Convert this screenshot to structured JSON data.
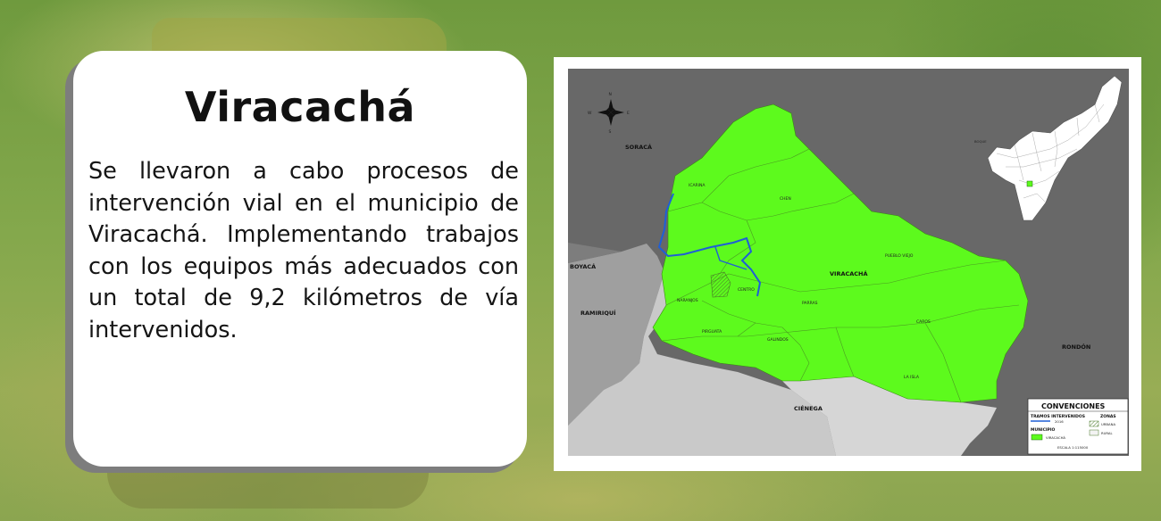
{
  "card": {
    "title": "Viracachá",
    "text": "Se llevaron a cabo procesos de intervención vial en el municipio de Viracachá. Implementando trabajos con los equipos más adecuados con un total de 9,2 kilómetros de vía intervenidos."
  },
  "map": {
    "compass": {
      "n": "N",
      "s": "S",
      "e": "E",
      "w": "W"
    },
    "neighbors": {
      "soraca": "SORACÁ",
      "boyaca": "BOYACÁ",
      "ramiriqui": "RAMIRIQUÍ",
      "cienega": "CIÉNEGA",
      "rondon": "RONDÓN"
    },
    "municipality_label": "VIRACACHÁ",
    "veredas": {
      "icarina": "ICARINA",
      "chen": "CHEN",
      "pueblo_viejo": "PUEBLO VIEJO",
      "naranjos": "NARANJOS",
      "centro": "CENTRO",
      "parras": "PARRAS",
      "caros": "CAROS",
      "pirgua": "PIRGUATA",
      "galindos": "GALINDOS",
      "la_isla": "LA ISLA"
    },
    "inset_label": "BOQUE",
    "legend": {
      "title": "CONVENCIONES",
      "tramos": "TRAMOS INTERVENIDOS",
      "year": "2016",
      "zonas": "ZONAS",
      "municipio": "MUNICIPIO",
      "municipio_item": "VIRACACHÁ",
      "urbana": "URBANA",
      "rural": "RURAL",
      "scale": "ESCALA 1:115000"
    },
    "colors": {
      "municipality": "#5dfa1d",
      "road": "#1f5fd6",
      "outside": "#6b6b6b",
      "neighbor": "#c8c8c8"
    }
  }
}
